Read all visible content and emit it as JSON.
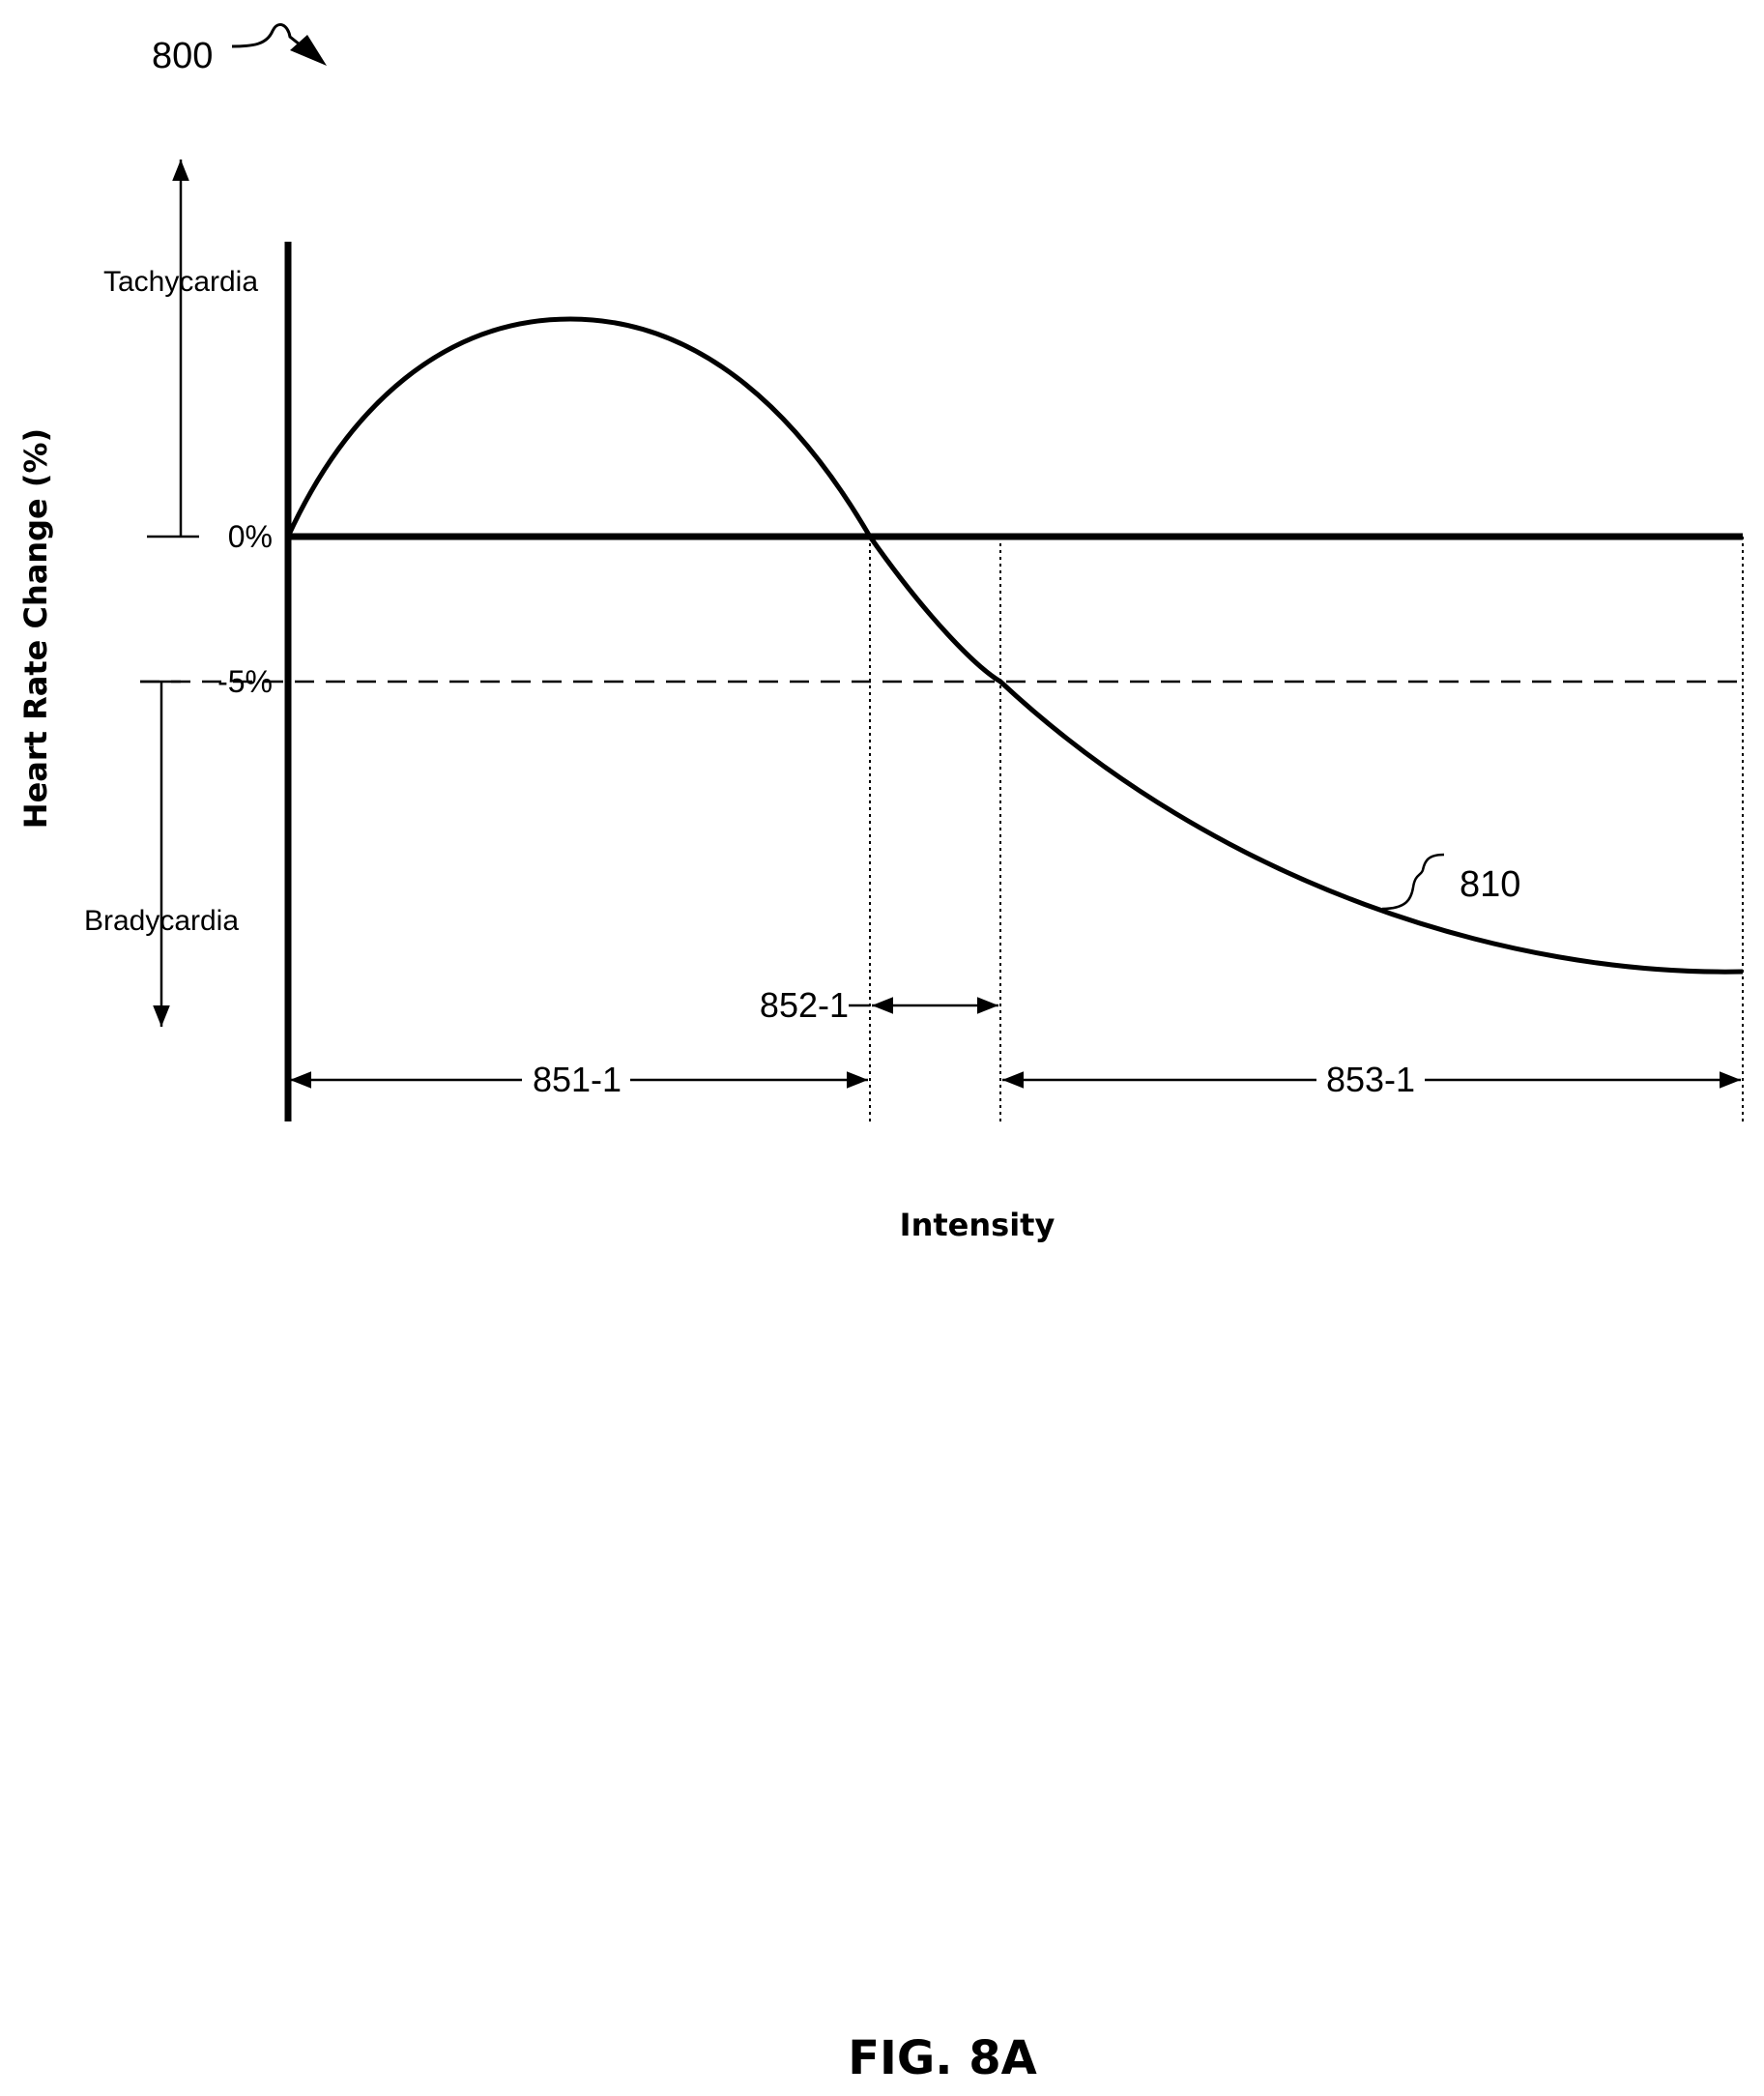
{
  "figure": {
    "ref_number": "800",
    "caption": "FIG. 8A",
    "y_axis_label": "Heart Rate Change (%)",
    "x_axis_label": "Intensity",
    "tachycardia_label": "Tachycardia",
    "bradycardia_label": "Bradycardia",
    "zero_tick": "0%",
    "threshold_tick": "-5%",
    "curve_ref": "810",
    "range_1_label": "851-1",
    "range_2_label": "852-1",
    "range_3_label": "853-1"
  },
  "colors": {
    "ink": "#000000",
    "background": "#ffffff"
  }
}
